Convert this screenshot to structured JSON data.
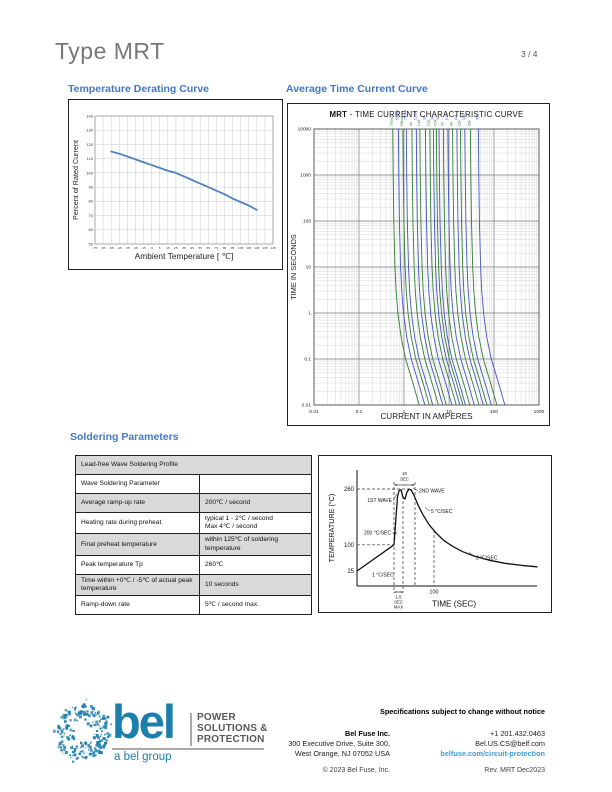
{
  "page": {
    "title": "Type MRT",
    "page_number": "3 / 4"
  },
  "sections": {
    "derating_heading": "Temperature Derating Curve",
    "tcc_heading": "Average Time Current Curve",
    "soldering_heading": "Soldering Parameters"
  },
  "chart_data": [
    {
      "id": "derating",
      "type": "line",
      "title": "",
      "xlabel": "Ambient Temperature [ ℃]",
      "ylabel": "Percent of Rated Current",
      "x_range": [
        -75,
        145
      ],
      "y_range": [
        50,
        140
      ],
      "x_ticks": [
        -75,
        -65,
        -55,
        -45,
        -35,
        -25,
        -15,
        -5,
        5,
        15,
        25,
        35,
        45,
        55,
        65,
        75,
        85,
        95,
        105,
        115,
        125,
        135,
        145
      ],
      "y_ticks": [
        50,
        60,
        70,
        80,
        90,
        100,
        110,
        120,
        130,
        140
      ],
      "grid": true,
      "line_color": "#4f81bd",
      "points": [
        [
          -55,
          115
        ],
        [
          -45,
          113.5
        ],
        [
          -35,
          111.5
        ],
        [
          -25,
          109.5
        ],
        [
          -15,
          107.5
        ],
        [
          -5,
          105.5
        ],
        [
          5,
          103.5
        ],
        [
          15,
          101.5
        ],
        [
          25,
          100
        ],
        [
          35,
          97.5
        ],
        [
          45,
          95
        ],
        [
          55,
          92.5
        ],
        [
          65,
          90
        ],
        [
          75,
          87.5
        ],
        [
          85,
          85
        ],
        [
          95,
          82
        ],
        [
          105,
          79.5
        ],
        [
          115,
          77
        ],
        [
          125,
          74
        ]
      ]
    },
    {
      "id": "tcc",
      "type": "line",
      "title_bold": "MRT",
      "title_rest": " - TIME CURRENT CHARACTERISTIC CURVE",
      "xlabel": "CURRENT IN AMPERES",
      "ylabel": "TIME IN SECONDS",
      "x_log_range": [
        0.01,
        1000
      ],
      "y_log_range": [
        0.01,
        10000
      ],
      "x_ticks": [
        "0.01",
        "0.1",
        "1",
        "10",
        "100",
        "1000"
      ],
      "y_ticks": [
        "10000",
        "1000",
        "100",
        "10",
        "1",
        "0.1",
        "0.01"
      ],
      "grid": true,
      "colors": [
        "#2f7d32",
        "#4153c4"
      ],
      "series": [
        {
          "label": "375mA",
          "rating": 0.375
        },
        {
          "label": "500mA",
          "rating": 0.5
        },
        {
          "label": "630mA",
          "rating": 0.63
        },
        {
          "label": "750mA",
          "rating": 0.75
        },
        {
          "label": "1A",
          "rating": 1
        },
        {
          "label": "1.25A",
          "rating": 1.25
        },
        {
          "label": "1.5A",
          "rating": 1.5
        },
        {
          "label": "2A",
          "rating": 2
        },
        {
          "label": "2.5A",
          "rating": 2.5
        },
        {
          "label": "3A",
          "rating": 3
        },
        {
          "label": "3.5A",
          "rating": 3.5
        },
        {
          "label": "4A",
          "rating": 4
        },
        {
          "label": "5A",
          "rating": 5
        },
        {
          "label": "6.3A",
          "rating": 6.3
        },
        {
          "label": "8A",
          "rating": 8
        },
        {
          "label": "10A",
          "rating": 10
        },
        {
          "label": "12A",
          "rating": 12
        },
        {
          "label": "15A",
          "rating": 15
        },
        {
          "label": "20A",
          "rating": 20
        },
        {
          "label": "30A",
          "rating": 30
        }
      ],
      "time_current_factor": [
        [
          10000,
          1.5
        ],
        [
          1000,
          1.53
        ],
        [
          100,
          1.58
        ],
        [
          10,
          1.68
        ],
        [
          3,
          1.78
        ],
        [
          1,
          1.95
        ],
        [
          0.3,
          2.3
        ],
        [
          0.1,
          2.9
        ],
        [
          0.03,
          4.2
        ],
        [
          0.01,
          5.8
        ]
      ]
    },
    {
      "id": "solder_profile",
      "type": "line",
      "xlabel": "TIME (SEC)",
      "ylabel": "TEMPERATURE (°C)",
      "y_tick_labels": [
        "260",
        "100",
        "25"
      ],
      "x_tick_labels": [
        "100"
      ],
      "profile_points_temp_c": [
        [
          38,
          25
        ],
        [
          75,
          100
        ],
        [
          78.5,
          238
        ],
        [
          80,
          255
        ],
        [
          82,
          258
        ],
        [
          84,
          236
        ],
        [
          86,
          231
        ],
        [
          88,
          252
        ],
        [
          90,
          259
        ],
        [
          92,
          258
        ],
        [
          95,
          242
        ],
        [
          99,
          214
        ],
        [
          104,
          186
        ],
        [
          110,
          158
        ],
        [
          117,
          134
        ],
        [
          125,
          112
        ],
        [
          134,
          95
        ],
        [
          144,
          80
        ],
        [
          156,
          67
        ],
        [
          170,
          56
        ],
        [
          186,
          47
        ],
        [
          203,
          41
        ],
        [
          218,
          37
        ]
      ],
      "labels": {
        "dwell_line1": "10",
        "dwell_line2": "SEC",
        "wave1": "1ST WAVE",
        "wave2": "2ND WAVE",
        "ramp_rate": "200 °C/SEC",
        "fall_rate": "5 °C/SEC",
        "preheat_rate": "1 °C/SEC",
        "tail_rate": "2 °C/SEC",
        "wave_time_line1": "1.5",
        "wave_time_line2": "SEC",
        "wave_time_line3": "MAX"
      }
    }
  ],
  "soldering_table": {
    "rows": [
      {
        "shaded": true,
        "cells": [
          {
            "text": "Lead-free Wave Soldering Profile",
            "span": 2
          }
        ]
      },
      {
        "shaded": false,
        "cells": [
          {
            "text": "Wave Soldering Parameter"
          },
          {
            "text": ""
          }
        ]
      },
      {
        "shaded": true,
        "cells": [
          {
            "text": "Average ramp-up rate"
          },
          {
            "text": "200℃ / second"
          }
        ]
      },
      {
        "shaded": false,
        "cells": [
          {
            "text": "Heating rate during preheat"
          },
          {
            "text": "typical 1 - 2℃ / second\nMax 4℃ / second"
          }
        ]
      },
      {
        "shaded": true,
        "cells": [
          {
            "text": "Final preheat temperature"
          },
          {
            "text": "within 125℃ of soldering temperature"
          }
        ]
      },
      {
        "shaded": false,
        "cells": [
          {
            "text": "Peak temperature Tp"
          },
          {
            "text": "260℃"
          }
        ]
      },
      {
        "shaded": true,
        "cells": [
          {
            "text": "Time within +0℃ / -5℃ of actual peak temperature"
          },
          {
            "text": "10 seconds"
          }
        ]
      },
      {
        "shaded": false,
        "cells": [
          {
            "text": "Ramp-down rate"
          },
          {
            "text": "5℃ / second max."
          }
        ]
      }
    ]
  },
  "footer": {
    "brand": {
      "wordmark": "bel",
      "tagline": [
        "POWER",
        "SOLUTIONS &",
        "PROTECTION"
      ],
      "group": "a bel group",
      "brand_color": "#1b7eab"
    },
    "notice": "Specifications subject to change without notice",
    "company": {
      "name": "Bel Fuse Inc.",
      "address1": "300 Executive Drive, Suite 300,",
      "address2": "West Orange, NJ 07052 USA"
    },
    "contact": {
      "phone": "+1 201.432.0463",
      "email": "Bel.US.CS@belf.com",
      "website": "belfuse.com/circuit-protection"
    },
    "copyright": "© 2023 Bel Fuse, Inc.",
    "revision": "Rev. MRT Dec2023"
  }
}
